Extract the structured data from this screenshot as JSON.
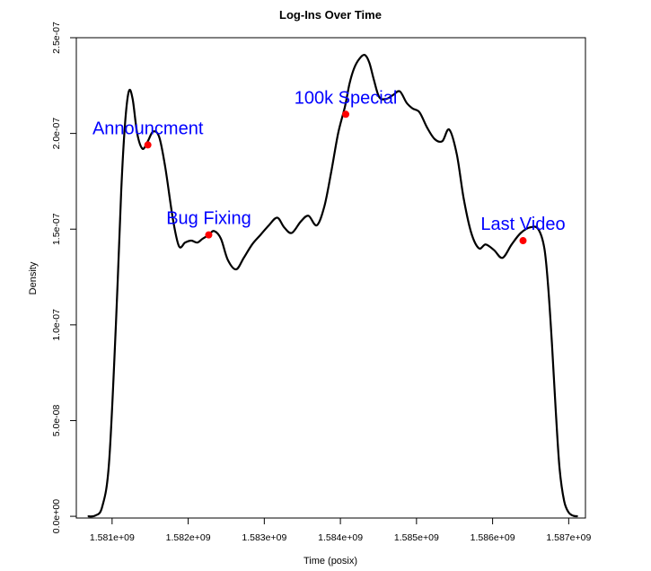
{
  "chart_data": {
    "type": "line",
    "title": "Log-Ins Over Time",
    "xlabel": "Time (posix)",
    "ylabel": "Density",
    "xlim": [
      1580530000,
      1587220000
    ],
    "ylim": [
      -9e-10,
      2.5e-07
    ],
    "x_ticks": [
      1581000000,
      1582000000,
      1583000000,
      1584000000,
      1585000000,
      1586000000,
      1587000000
    ],
    "x_tick_labels": [
      "1.581e+09",
      "1.582e+09",
      "1.583e+09",
      "1.584e+09",
      "1.585e+09",
      "1.586e+09",
      "1.587e+09"
    ],
    "y_ticks": [
      0,
      5e-08,
      1e-07,
      1.5e-07,
      2e-07,
      2.5e-07
    ],
    "y_tick_labels": [
      "0.0e+00",
      "5.0e-08",
      "1.0e-07",
      "1.5e-07",
      "2.0e-07",
      "2.5e-07"
    ],
    "grid": false,
    "series": [
      {
        "color": "#000000",
        "x": [
          1580680000,
          1580780000,
          1580870000,
          1580960000,
          1581050000,
          1581120000,
          1581170000,
          1581220000,
          1581270000,
          1581330000,
          1581400000,
          1581470000,
          1581540000,
          1581620000,
          1581700000,
          1581800000,
          1581880000,
          1581960000,
          1582040000,
          1582120000,
          1582190000,
          1582270000,
          1582340000,
          1582430000,
          1582520000,
          1582630000,
          1582730000,
          1582840000,
          1582950000,
          1583060000,
          1583170000,
          1583260000,
          1583360000,
          1583480000,
          1583580000,
          1583690000,
          1583790000,
          1583880000,
          1583970000,
          1584060000,
          1584120000,
          1584180000,
          1584250000,
          1584320000,
          1584380000,
          1584440000,
          1584510000,
          1584600000,
          1584690000,
          1584780000,
          1584870000,
          1584950000,
          1585040000,
          1585140000,
          1585240000,
          1585340000,
          1585430000,
          1585530000,
          1585620000,
          1585720000,
          1585820000,
          1585910000,
          1586020000,
          1586130000,
          1586250000,
          1586370000,
          1586500000,
          1586600000,
          1586680000,
          1586730000,
          1586780000,
          1586830000,
          1586880000,
          1586940000,
          1587000000,
          1587060000,
          1587120000
        ],
        "y": [
          0.0,
          4e-10,
          5e-09,
          2.8e-08,
          1e-07,
          1.7e-07,
          2.05e-07,
          2.22e-07,
          2.18e-07,
          2e-07,
          1.92e-07,
          1.96e-07,
          2.01e-07,
          1.98e-07,
          1.82e-07,
          1.55e-07,
          1.41e-07,
          1.43e-07,
          1.44e-07,
          1.43e-07,
          1.45e-07,
          1.47e-07,
          1.49e-07,
          1.45e-07,
          1.34e-07,
          1.29e-07,
          1.35e-07,
          1.42e-07,
          1.47e-07,
          1.52e-07,
          1.56e-07,
          1.51e-07,
          1.48e-07,
          1.54e-07,
          1.57e-07,
          1.52e-07,
          1.62e-07,
          1.8e-07,
          2e-07,
          2.14e-07,
          2.26e-07,
          2.34e-07,
          2.39e-07,
          2.41e-07,
          2.37e-07,
          2.28e-07,
          2.19e-07,
          2.18e-07,
          2.2e-07,
          2.22e-07,
          2.16e-07,
          2.13e-07,
          2.11e-07,
          2.03e-07,
          1.97e-07,
          1.96e-07,
          2.02e-07,
          1.89e-07,
          1.66e-07,
          1.48e-07,
          1.4e-07,
          1.42e-07,
          1.39e-07,
          1.35e-07,
          1.42e-07,
          1.48e-07,
          1.51e-07,
          1.5e-07,
          1.4e-07,
          1.2e-07,
          9e-08,
          5.5e-08,
          2.5e-08,
          8e-09,
          2e-09,
          3e-10,
          0.0
        ]
      }
    ],
    "annotations": [
      {
        "label": "Announcment",
        "x": 1581470000,
        "y": 1.94e-07,
        "point_color": "#ff0000",
        "text_color": "#0000ff"
      },
      {
        "label": "Bug Fixing",
        "x": 1582270000,
        "y": 1.47e-07,
        "point_color": "#ff0000",
        "text_color": "#0000ff"
      },
      {
        "label": "100k Special",
        "x": 1584070000,
        "y": 2.1e-07,
        "point_color": "#ff0000",
        "text_color": "#0000ff"
      },
      {
        "label": "Last Video",
        "x": 1586400000,
        "y": 1.44e-07,
        "point_color": "#ff0000",
        "text_color": "#0000ff"
      }
    ]
  }
}
